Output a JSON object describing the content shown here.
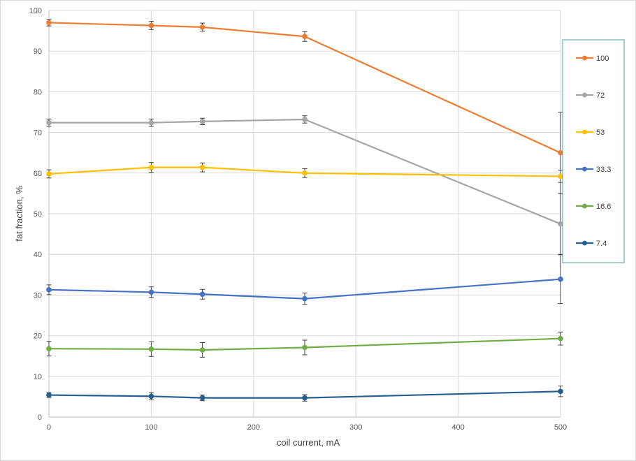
{
  "chart_data": {
    "type": "line",
    "xlabel": "coil current, mA",
    "ylabel": "fat fraction, %",
    "xlim": [
      0,
      500
    ],
    "ylim": [
      0,
      100
    ],
    "x_ticks": [
      0,
      100,
      200,
      300,
      400,
      500
    ],
    "y_ticks": [
      0,
      10,
      20,
      30,
      40,
      50,
      60,
      70,
      80,
      90,
      100
    ],
    "grid": true,
    "legend_position": "right",
    "x": [
      0,
      100,
      150,
      250,
      500
    ],
    "series": [
      {
        "name": "100",
        "color": "#ED7D31",
        "values": [
          97.0,
          96.3,
          95.9,
          93.6,
          65.0
        ],
        "errors": [
          0.8,
          1.0,
          1.0,
          1.2,
          10.0
        ]
      },
      {
        "name": "72",
        "color": "#A5A5A5",
        "values": [
          72.4,
          72.4,
          72.7,
          73.2,
          47.5
        ],
        "errors": [
          0.9,
          0.9,
          0.8,
          0.9,
          7.5
        ]
      },
      {
        "name": "53",
        "color": "#FFC000",
        "values": [
          59.8,
          61.4,
          61.4,
          60.0,
          59.2
        ],
        "errors": [
          1.0,
          1.2,
          1.1,
          1.1,
          1.5
        ]
      },
      {
        "name": "33.3",
        "color": "#4472C4",
        "values": [
          31.3,
          30.7,
          30.2,
          29.1,
          33.9
        ],
        "errors": [
          1.2,
          1.3,
          1.2,
          1.4,
          6.0
        ]
      },
      {
        "name": "16.6",
        "color": "#70AD47",
        "values": [
          16.8,
          16.7,
          16.5,
          17.1,
          19.3
        ],
        "errors": [
          1.8,
          1.8,
          1.8,
          1.8,
          1.6
        ]
      },
      {
        "name": "7.4",
        "color": "#255E91",
        "values": [
          5.4,
          5.1,
          4.7,
          4.7,
          6.3
        ],
        "errors": [
          0.6,
          0.9,
          0.7,
          0.8,
          1.3
        ]
      }
    ]
  }
}
